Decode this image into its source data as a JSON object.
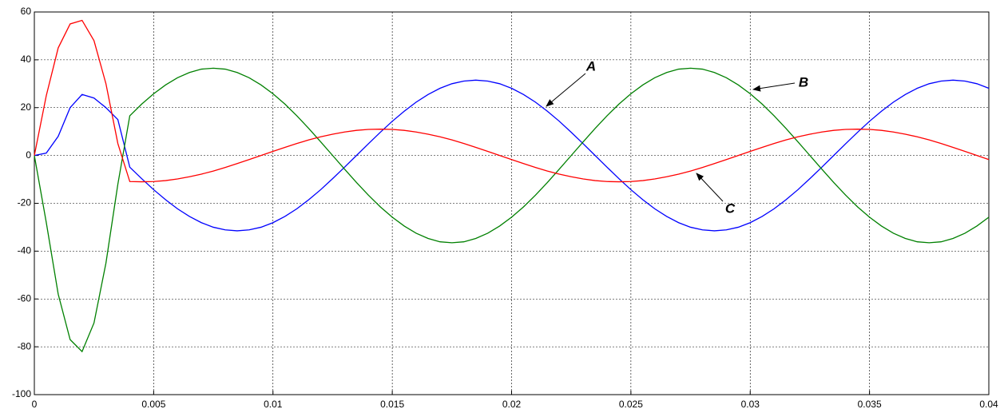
{
  "chart_data": {
    "type": "line",
    "x": [
      0,
      0.0005,
      0.001,
      0.0015,
      0.002,
      0.0025,
      0.003,
      0.0035,
      0.004,
      0.0045,
      0.005,
      0.0055,
      0.006,
      0.0065,
      0.007,
      0.0075,
      0.008,
      0.0085,
      0.009,
      0.0095,
      0.01,
      0.0105,
      0.011,
      0.0115,
      0.012,
      0.0125,
      0.013,
      0.0135,
      0.014,
      0.0145,
      0.015,
      0.0155,
      0.016,
      0.0165,
      0.017,
      0.0175,
      0.018,
      0.0185,
      0.019,
      0.0195,
      0.02,
      0.0205,
      0.021,
      0.0215,
      0.022,
      0.0225,
      0.023,
      0.0235,
      0.024,
      0.0245,
      0.025,
      0.0255,
      0.026,
      0.0265,
      0.027,
      0.0275,
      0.028,
      0.0285,
      0.029,
      0.0295,
      0.03,
      0.0305,
      0.031,
      0.0315,
      0.032,
      0.0325,
      0.033,
      0.0335,
      0.034,
      0.0345,
      0.035,
      0.0355,
      0.036,
      0.0365,
      0.037,
      0.0375,
      0.038,
      0.0385,
      0.039,
      0.0395,
      0.04
    ],
    "series": [
      {
        "color": "#0000ff",
        "values": [
          0,
          1,
          8,
          20,
          25.5,
          24,
          20,
          15,
          -4.9,
          -9.7,
          -14.3,
          -18.5,
          -22.3,
          -25.5,
          -28.1,
          -30.0,
          -31.1,
          -31.5,
          -31.1,
          -30.0,
          -28.1,
          -25.5,
          -22.3,
          -18.5,
          -14.3,
          -9.7,
          -4.9,
          0,
          4.9,
          9.7,
          14.3,
          18.5,
          22.3,
          25.5,
          28.1,
          30.0,
          31.1,
          31.5,
          31.1,
          30.0,
          28.1,
          25.5,
          22.3,
          18.5,
          14.3,
          9.7,
          4.9,
          0,
          -4.9,
          -9.7,
          -14.3,
          -18.5,
          -22.3,
          -25.5,
          -28.1,
          -30.0,
          -31.1,
          -31.5,
          -31.1,
          -30.0,
          -28.1,
          -25.5,
          -22.3,
          -18.5,
          -14.3,
          -9.7,
          -4.9,
          0,
          4.9,
          9.7,
          14.3,
          18.5,
          22.3,
          25.5,
          28.1,
          30.0,
          31.1,
          31.5,
          31.1,
          30.0,
          28.1
        ]
      },
      {
        "color": "#008000",
        "values": [
          0,
          -28,
          -58,
          -77,
          -82,
          -70,
          -45,
          -12,
          16.6,
          21.5,
          25.8,
          29.5,
          32.5,
          34.7,
          36.1,
          36.5,
          36.1,
          34.7,
          32.5,
          29.5,
          25.8,
          21.5,
          16.6,
          11.3,
          5.7,
          0,
          -5.7,
          -11.3,
          -16.6,
          -21.5,
          -25.8,
          -29.5,
          -32.5,
          -34.7,
          -36.1,
          -36.5,
          -36.1,
          -34.7,
          -32.5,
          -29.5,
          -25.8,
          -21.5,
          -16.6,
          -11.3,
          -5.7,
          0,
          5.7,
          11.3,
          16.6,
          21.5,
          25.8,
          29.5,
          32.5,
          34.7,
          36.1,
          36.5,
          36.1,
          34.7,
          32.5,
          29.5,
          25.8,
          21.5,
          16.6,
          11.3,
          5.7,
          0,
          -5.7,
          -11.3,
          -16.6,
          -21.5,
          -25.8,
          -29.5,
          -32.5,
          -34.7,
          -36.1,
          -36.5,
          -36.1,
          -34.7,
          -32.5,
          -29.5,
          -25.8
        ]
      },
      {
        "color": "#ff0000",
        "values": [
          0,
          25,
          45,
          55,
          56.5,
          48,
          30,
          5,
          -10.9,
          -11,
          -10.9,
          -10.5,
          -9.8,
          -8.9,
          -7.8,
          -6.5,
          -5.0,
          -3.4,
          -1.7,
          0,
          1.7,
          3.4,
          5.0,
          6.5,
          7.8,
          8.9,
          9.8,
          10.5,
          10.9,
          11,
          10.9,
          10.5,
          9.8,
          8.9,
          7.8,
          6.5,
          5.0,
          3.4,
          1.7,
          0,
          -1.7,
          -3.4,
          -5.0,
          -6.5,
          -7.8,
          -8.9,
          -9.8,
          -10.5,
          -10.9,
          -11,
          -10.9,
          -10.5,
          -9.8,
          -8.9,
          -7.8,
          -6.5,
          -5.0,
          -3.4,
          -1.7,
          0,
          1.7,
          3.4,
          5.0,
          6.5,
          7.8,
          8.9,
          9.8,
          10.5,
          10.9,
          11,
          10.9,
          10.5,
          9.8,
          8.9,
          7.8,
          6.5,
          5.0,
          3.4,
          1.7,
          0,
          -1.7
        ]
      }
    ],
    "annotations": [
      "A",
      "B",
      "C"
    ],
    "xlim": [
      0,
      0.04
    ],
    "xticks": [
      0,
      0.005,
      0.01,
      0.015,
      0.02,
      0.025,
      0.03,
      0.035,
      0.04
    ],
    "ylim": [
      -100,
      60
    ],
    "yticks": [
      -100,
      -80,
      -60,
      -40,
      -20,
      0,
      20,
      40,
      60
    ],
    "grid": true
  }
}
